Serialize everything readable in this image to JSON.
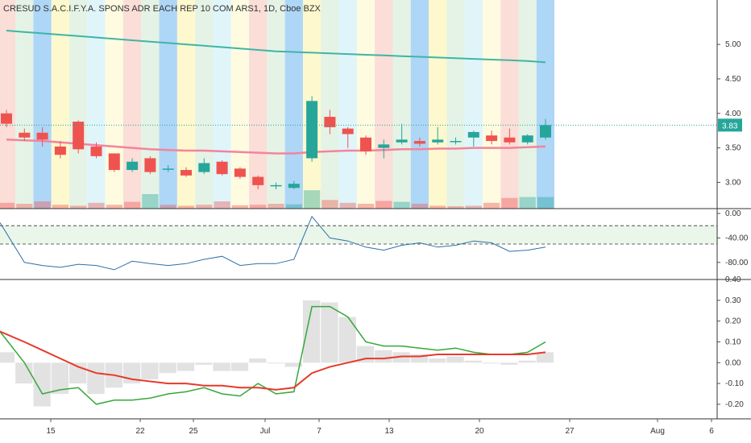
{
  "chart_data": {
    "type": "candlestick",
    "title": "CRESUD S.A.C.I.F.Y.A. SPONS ADR EACH REP 10 COM ARS1, 1D, Cboe BZX",
    "colors": {
      "up": "#26a69a",
      "down": "#ef5350",
      "ma_long": "#3fb5a5",
      "ma_short": "#f4849b",
      "rsi_line": "#2f6fa8",
      "oscillator_fast": "#36a83a",
      "oscillator_slow": "#e8392a",
      "price_label_bg": "#26a69a",
      "band_colors": [
        "#f6c2b6",
        "#cde9cf",
        "#6cb5f0",
        "#fbf3a5",
        "#cde9cf",
        "#c6ecf6",
        "#fdf7c6"
      ]
    },
    "x_labels": [
      "15",
      "22",
      "25",
      "Jul",
      "7",
      "13",
      "20",
      "27",
      "Aug",
      "6"
    ],
    "candles": [
      {
        "o": 4.0,
        "h": 4.05,
        "l": 3.8,
        "c": 3.85
      },
      {
        "o": 3.72,
        "h": 3.78,
        "l": 3.6,
        "c": 3.65
      },
      {
        "o": 3.72,
        "h": 3.8,
        "l": 3.52,
        "c": 3.62
      },
      {
        "o": 3.52,
        "h": 3.6,
        "l": 3.35,
        "c": 3.4
      },
      {
        "o": 3.88,
        "h": 3.9,
        "l": 3.42,
        "c": 3.48
      },
      {
        "o": 3.52,
        "h": 3.58,
        "l": 3.35,
        "c": 3.38
      },
      {
        "o": 3.42,
        "h": 3.42,
        "l": 3.15,
        "c": 3.18
      },
      {
        "o": 3.18,
        "h": 3.35,
        "l": 3.15,
        "c": 3.3
      },
      {
        "o": 3.35,
        "h": 3.38,
        "l": 3.12,
        "c": 3.15
      },
      {
        "o": 3.2,
        "h": 3.25,
        "l": 3.15,
        "c": 3.2
      },
      {
        "o": 3.18,
        "h": 3.22,
        "l": 3.08,
        "c": 3.1
      },
      {
        "o": 3.15,
        "h": 3.35,
        "l": 3.12,
        "c": 3.28
      },
      {
        "o": 3.3,
        "h": 3.32,
        "l": 3.1,
        "c": 3.12
      },
      {
        "o": 3.2,
        "h": 3.22,
        "l": 3.05,
        "c": 3.08
      },
      {
        "o": 3.08,
        "h": 3.1,
        "l": 2.9,
        "c": 2.96
      },
      {
        "o": 2.95,
        "h": 3.0,
        "l": 2.9,
        "c": 2.96
      },
      {
        "o": 2.92,
        "h": 3.02,
        "l": 2.9,
        "c": 2.98
      },
      {
        "o": 3.35,
        "h": 4.25,
        "l": 3.3,
        "c": 4.18
      },
      {
        "o": 3.95,
        "h": 4.05,
        "l": 3.7,
        "c": 3.8
      },
      {
        "o": 3.78,
        "h": 3.8,
        "l": 3.5,
        "c": 3.7
      },
      {
        "o": 3.65,
        "h": 3.68,
        "l": 3.4,
        "c": 3.45
      },
      {
        "o": 3.5,
        "h": 3.62,
        "l": 3.35,
        "c": 3.55
      },
      {
        "o": 3.58,
        "h": 3.85,
        "l": 3.55,
        "c": 3.62
      },
      {
        "o": 3.6,
        "h": 3.65,
        "l": 3.52,
        "c": 3.56
      },
      {
        "o": 3.58,
        "h": 3.8,
        "l": 3.55,
        "c": 3.62
      },
      {
        "o": 3.6,
        "h": 3.65,
        "l": 3.55,
        "c": 3.6
      },
      {
        "o": 3.65,
        "h": 3.75,
        "l": 3.52,
        "c": 3.73
      },
      {
        "o": 3.68,
        "h": 3.75,
        "l": 3.55,
        "c": 3.6
      },
      {
        "o": 3.65,
        "h": 3.78,
        "l": 3.55,
        "c": 3.58
      },
      {
        "o": 3.58,
        "h": 3.7,
        "l": 3.55,
        "c": 3.68
      },
      {
        "o": 3.65,
        "h": 3.92,
        "l": 3.62,
        "c": 3.83
      }
    ],
    "volumes": [
      0.12,
      0.1,
      0.15,
      0.08,
      0.06,
      0.12,
      0.08,
      0.14,
      0.3,
      0.08,
      0.06,
      0.08,
      0.15,
      0.07,
      0.08,
      0.1,
      0.09,
      0.38,
      0.18,
      0.12,
      0.1,
      0.16,
      0.14,
      0.1,
      0.06,
      0.05,
      0.06,
      0.12,
      0.22,
      0.24,
      0.24
    ],
    "volume_up": [
      false,
      false,
      false,
      false,
      false,
      false,
      false,
      false,
      true,
      false,
      false,
      false,
      false,
      false,
      false,
      false,
      true,
      true,
      false,
      false,
      false,
      false,
      true,
      false,
      false,
      false,
      false,
      false,
      false,
      true,
      true
    ],
    "ma_long": [
      5.2,
      5.18,
      5.16,
      5.14,
      5.12,
      5.1,
      5.08,
      5.06,
      5.04,
      5.02,
      5.0,
      4.98,
      4.96,
      4.94,
      4.92,
      4.9,
      4.89,
      4.88,
      4.87,
      4.86,
      4.85,
      4.84,
      4.83,
      4.82,
      4.81,
      4.8,
      4.79,
      4.78,
      4.77,
      4.76,
      4.74
    ],
    "ma_short": [
      3.62,
      3.61,
      3.6,
      3.58,
      3.56,
      3.54,
      3.52,
      3.5,
      3.48,
      3.47,
      3.46,
      3.46,
      3.45,
      3.44,
      3.43,
      3.42,
      3.42,
      3.44,
      3.45,
      3.46,
      3.46,
      3.47,
      3.48,
      3.48,
      3.49,
      3.49,
      3.5,
      3.5,
      3.5,
      3.51,
      3.52
    ],
    "last_price": 3.83,
    "price_axis": {
      "ticks": [
        5.0,
        4.5,
        4.0,
        3.5,
        3.0
      ],
      "min": 2.62,
      "max": 5.55
    },
    "rsi": [
      -15,
      -80,
      -85,
      -88,
      -83,
      -85,
      -92,
      -78,
      -82,
      -85,
      -82,
      -75,
      -70,
      -85,
      -82,
      -82,
      -75,
      -5,
      -40,
      -45,
      -55,
      -60,
      -52,
      -48,
      -55,
      -52,
      -45,
      -48,
      -62,
      -60,
      -55
    ],
    "rsi_axis": {
      "ticks": [
        0.0,
        -40.0,
        -80.0
      ],
      "min": -100,
      "max": 0,
      "bands": [
        -20,
        -50
      ]
    },
    "oscillator": {
      "fast": [
        0.15,
        0.0,
        -0.15,
        -0.13,
        -0.12,
        -0.2,
        -0.18,
        -0.18,
        -0.17,
        -0.15,
        -0.14,
        -0.12,
        -0.15,
        -0.16,
        -0.1,
        -0.15,
        -0.14,
        0.27,
        0.27,
        0.22,
        0.1,
        0.08,
        0.08,
        0.07,
        0.06,
        0.07,
        0.05,
        0.04,
        0.04,
        0.05,
        0.1
      ],
      "slow": [
        0.15,
        0.1,
        0.06,
        0.02,
        -0.02,
        -0.05,
        -0.06,
        -0.08,
        -0.09,
        -0.1,
        -0.1,
        -0.11,
        -0.11,
        -0.12,
        -0.12,
        -0.13,
        -0.12,
        -0.05,
        -0.02,
        0.0,
        0.02,
        0.02,
        0.03,
        0.03,
        0.04,
        0.04,
        0.04,
        0.04,
        0.04,
        0.04,
        0.05
      ],
      "histogram": [
        0.05,
        -0.1,
        -0.21,
        -0.15,
        -0.1,
        -0.15,
        -0.12,
        -0.1,
        -0.08,
        -0.05,
        -0.04,
        -0.01,
        -0.04,
        -0.04,
        0.02,
        0.0,
        -0.02,
        0.3,
        0.29,
        0.22,
        0.08,
        0.06,
        0.05,
        0.04,
        0.02,
        0.03,
        0.01,
        0.0,
        -0.01,
        0.01,
        0.05
      ]
    },
    "oscillator_axis": {
      "ticks": [
        0.4,
        0.3,
        0.2,
        0.1,
        0.0,
        -0.1,
        -0.2
      ],
      "min": -0.27,
      "max": 0.4
    }
  }
}
